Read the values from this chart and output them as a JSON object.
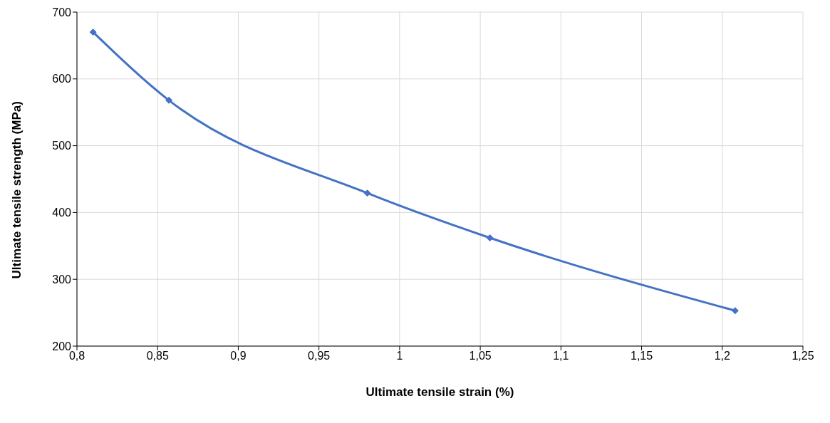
{
  "chart_data": {
    "type": "line",
    "xlabel": "Ultimate tensile strain (%)",
    "ylabel": "Ultimate tensile strength (MPa)",
    "x": [
      0.81,
      0.857,
      0.98,
      1.056,
      1.208
    ],
    "series": [
      {
        "color": "#4472c4",
        "values": [
          670,
          568,
          429,
          362,
          253
        ]
      }
    ],
    "xlim": [
      0.8,
      1.25
    ],
    "xticks": [
      {
        "value": 0.8,
        "label": "0,8"
      },
      {
        "value": 0.85,
        "label": "0,85"
      },
      {
        "value": 0.9,
        "label": "0,9"
      },
      {
        "value": 0.95,
        "label": "0,95"
      },
      {
        "value": 1,
        "label": "1"
      },
      {
        "value": 1.05,
        "label": "1,05"
      },
      {
        "value": 1.1,
        "label": "1,1"
      },
      {
        "value": 1.15,
        "label": "1,15"
      },
      {
        "value": 1.2,
        "label": "1,2"
      },
      {
        "value": 1.25,
        "label": "1,25"
      }
    ],
    "ylim": [
      200,
      700
    ],
    "yticks": [
      200,
      300,
      400,
      500,
      600,
      700
    ],
    "grid": true,
    "marker": "diamond",
    "line_style": "solid"
  }
}
